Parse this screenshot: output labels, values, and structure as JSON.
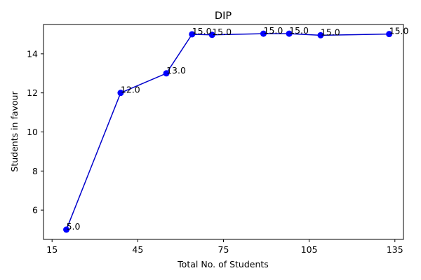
{
  "chart_data": {
    "type": "line",
    "title": "DIP",
    "xlabel": "Total No. of Students",
    "ylabel": "Students in favour",
    "xlim": [
      12,
      138
    ],
    "ylim": [
      4.5,
      15.5
    ],
    "xticks": [
      15,
      45,
      75,
      105,
      135
    ],
    "yticks": [
      6,
      8,
      10,
      12,
      14
    ],
    "grid": false,
    "color": "#0000cc",
    "marker_color": "#0000ff",
    "series": [
      {
        "x": [
          20,
          39,
          55,
          64,
          71,
          89,
          98,
          109,
          133
        ],
        "y": [
          5.0,
          12.0,
          13.0,
          15.0,
          14.97,
          15.03,
          15.03,
          14.95,
          15.01
        ],
        "labels": [
          "5.0",
          "12.0",
          "13.0",
          "15.0",
          "15.0",
          "15.0",
          "15.0",
          "15.0",
          "15.0"
        ]
      }
    ]
  }
}
